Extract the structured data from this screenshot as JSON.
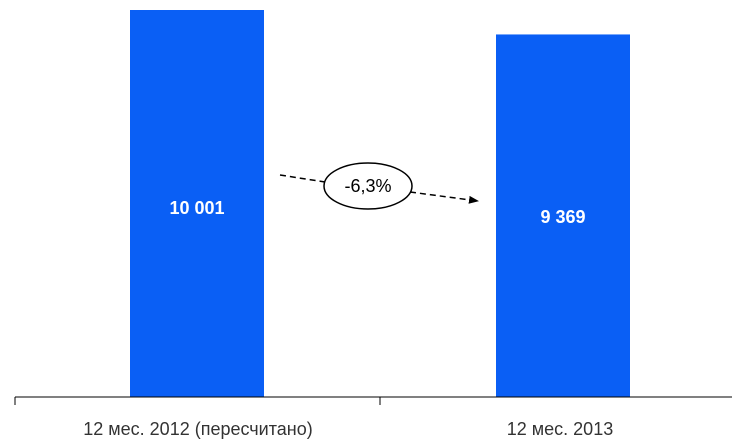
{
  "chart_data": {
    "type": "bar",
    "categories": [
      "12 мес. 2012 (пересчитано)",
      "12 мес. 2013"
    ],
    "values": [
      10001,
      9369
    ],
    "data_labels": [
      "10 001",
      "9 369"
    ],
    "change_label": "-6,3%",
    "ylim": [
      0,
      10001
    ],
    "grid": false,
    "bar_color": "#0a5ff5",
    "axis_color": "#000000"
  }
}
